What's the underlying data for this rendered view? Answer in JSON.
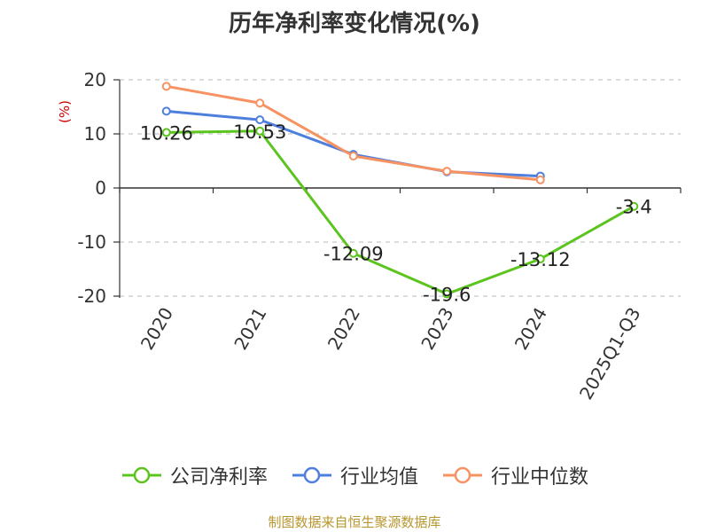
{
  "chart_data": {
    "type": "line",
    "title": "历年净利率变化情况(%)",
    "ylabel": "(%)",
    "ylim": [
      -20,
      20
    ],
    "yticks": [
      20,
      10,
      0,
      -10,
      -20
    ],
    "categories": [
      "2020",
      "2021",
      "2022",
      "2023",
      "2024",
      "2025Q1-Q3"
    ],
    "grid": true,
    "legend_position": "bottom",
    "series": [
      {
        "name": "公司净利率",
        "color": "#5cc41f",
        "values": [
          10.26,
          10.53,
          -12.09,
          -19.6,
          -13.12,
          -3.4
        ],
        "labels": [
          "10.26",
          "10.53",
          "-12.09",
          "-19.6",
          "-13.12",
          "-3.4"
        ]
      },
      {
        "name": "行业均值",
        "color": "#4f7fdd",
        "values": [
          14.2,
          12.6,
          6.2,
          3.0,
          2.2,
          null
        ]
      },
      {
        "name": "行业中位数",
        "color": "#f79262",
        "values": [
          18.8,
          15.7,
          5.9,
          3.1,
          1.5,
          null
        ]
      }
    ]
  },
  "footer": {
    "source": "制图数据来自恒生聚源数据库"
  }
}
